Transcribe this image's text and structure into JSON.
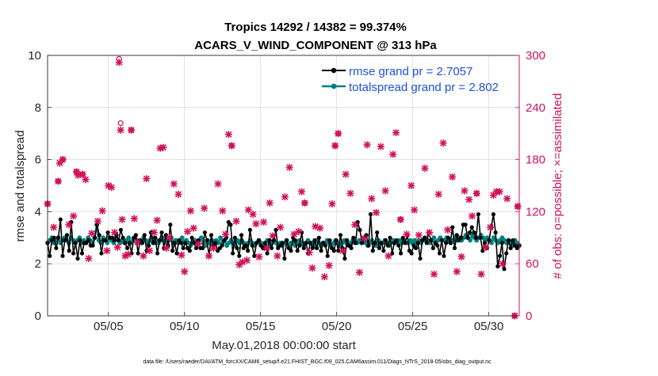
{
  "chart_data": {
    "type": "line",
    "title": "Tropics 14292 / 14382 = 99.374%",
    "subtitle": "ACARS_V_WIND_COMPONENT @ 313 hPa",
    "xlabel": "May.01,2018 00:00:00 start",
    "ylabel": "rmse and totalspread",
    "y2label": "# of obs: o=possible; ×=assimilated",
    "footnote": "data file: /Users/raeder/DAI/ATM_forcXX/CAM6_setup/f.e21.FHIST_BGC.f09_025.CAM6assim.011/Diags_NTrS_2018-05/obs_diag_output.nc",
    "xlim": [
      1,
      32
    ],
    "ylim": [
      0,
      10
    ],
    "y2lim": [
      0,
      300
    ],
    "x_ticks": [
      5,
      10,
      15,
      20,
      25,
      30
    ],
    "x_tick_labels": [
      "05/05",
      "05/10",
      "05/15",
      "05/20",
      "05/25",
      "05/30"
    ],
    "y_ticks": [
      0,
      2,
      4,
      6,
      8,
      10
    ],
    "y_tick_labels": [
      "0",
      "2",
      "4",
      "6",
      "8",
      "10"
    ],
    "y2_ticks": [
      0,
      60,
      120,
      180,
      240,
      300
    ],
    "y2_tick_labels": [
      "0",
      "60",
      "120",
      "180",
      "240",
      "300"
    ],
    "legend_position": "top-right",
    "colors": {
      "rmse": "#000000",
      "totalspread": "#008080",
      "obs": "#d0115b",
      "legend_text": "#1f4fe0",
      "axis": "#262626"
    },
    "series": [
      {
        "name": "rmse grand pr = 2.7057",
        "axis": "left",
        "values": [
          2.8,
          2.3,
          2.9,
          3.0,
          2.6,
          3.0,
          3.7,
          2.3,
          2.9,
          3.1,
          2.5,
          3.6,
          2.4,
          2.8,
          2.2,
          2.9,
          2.4,
          2.8,
          2.8,
          2.9,
          2.7,
          2.7,
          3.0,
          3.5,
          3.1,
          2.4,
          2.9,
          2.9,
          3.2,
          3.0,
          3.0,
          2.9,
          3.1,
          2.9,
          3.3,
          3.0,
          2.8,
          2.6,
          2.8,
          2.4,
          3.0,
          3.1,
          2.4,
          2.9,
          2.8,
          3.1,
          2.5,
          2.7,
          3.2,
          2.8,
          3.0,
          2.4,
          2.9,
          3.2,
          2.6,
          3.1,
          2.7,
          3.5,
          2.5,
          2.8,
          2.4,
          2.9,
          2.8,
          2.6,
          2.8,
          2.6,
          2.5,
          3.0,
          2.8,
          2.6,
          2.9,
          2.6,
          2.6,
          3.2,
          2.9,
          2.3,
          3.1,
          2.7,
          2.8,
          2.5,
          2.6,
          2.7,
          2.9,
          3.0,
          3.6,
          3.5,
          2.4,
          3.0,
          2.6,
          2.3,
          3.1,
          2.6,
          2.7,
          2.5,
          3.3,
          2.7,
          2.3,
          2.8,
          2.9,
          2.7,
          2.6,
          2.8,
          2.4,
          2.9,
          2.6,
          2.9,
          3.3,
          2.6,
          2.7,
          2.8,
          2.2,
          2.9,
          2.6,
          2.5,
          3.0,
          2.9,
          2.5,
          2.7,
          3.2,
          2.6,
          2.8,
          2.4,
          2.8,
          2.6,
          2.9,
          2.6,
          3.0,
          2.5,
          2.8,
          2.7,
          2.3,
          2.9,
          2.6,
          2.5,
          2.9,
          2.5,
          3.1,
          2.6,
          2.2,
          2.9,
          2.7,
          2.6,
          3.0,
          2.8,
          3.6,
          3.3,
          2.8,
          3.0,
          3.1,
          2.7,
          3.9,
          2.5,
          2.8,
          3.2,
          2.6,
          2.8,
          2.5,
          2.9,
          2.7,
          3.0,
          2.4,
          2.8,
          2.9,
          2.7,
          2.4,
          3.0,
          2.8,
          3.1,
          2.5,
          2.4,
          2.7,
          2.6,
          2.8,
          2.2,
          2.9,
          3.0,
          2.8,
          3.2,
          2.9,
          2.6,
          2.8,
          2.7,
          2.4,
          2.9,
          2.3,
          2.8,
          3.0,
          2.8,
          3.4,
          2.6,
          3.1,
          2.9,
          3.0,
          3.5,
          3.5,
          3.0,
          3.2,
          3.4,
          3.2,
          3.0,
          3.9,
          3.0,
          2.5,
          2.8,
          2.6,
          2.9,
          3.4,
          3.9,
          3.2,
          1.9,
          2.3,
          2.8,
          1.8,
          2.4,
          2.9,
          2.6,
          2.9,
          2.7,
          2.6,
          2.7
        ]
      },
      {
        "name": "totalspread grand pr = 2.802",
        "axis": "left",
        "values": [
          2.8,
          2.9,
          3.0,
          2.8,
          2.9,
          3.0,
          2.8,
          2.9,
          3.0,
          2.9,
          2.8,
          3.0,
          2.9,
          2.8,
          2.9,
          3.0,
          2.8,
          2.9,
          2.8,
          3.0,
          2.9,
          2.8,
          3.0,
          3.5,
          2.9,
          2.8,
          3.0,
          2.9,
          2.8,
          3.0,
          2.9,
          2.8,
          3.0,
          2.9,
          2.8,
          2.9,
          2.8,
          2.9,
          3.0,
          2.8,
          2.9,
          3.0,
          2.8,
          2.9,
          2.8,
          3.0,
          2.9,
          2.8,
          2.9,
          3.0,
          2.8,
          2.9,
          2.8,
          2.9,
          3.0,
          2.9,
          2.8,
          2.9,
          3.0,
          2.8,
          2.9,
          2.8,
          2.9,
          3.0,
          2.8,
          2.9,
          2.8,
          2.7,
          2.8,
          2.9,
          2.8,
          2.9,
          3.0,
          2.8,
          2.7,
          2.9,
          2.8,
          2.9,
          2.8,
          2.9,
          2.8,
          3.0,
          2.8,
          2.9,
          2.7,
          2.8,
          2.9,
          2.8,
          2.7,
          2.9,
          2.8,
          2.9,
          2.8,
          2.7,
          2.8,
          2.9,
          2.8,
          2.7,
          2.8,
          2.9,
          2.8,
          2.7,
          2.8,
          2.9,
          2.7,
          2.8,
          2.9,
          2.8,
          2.7,
          2.8,
          2.7,
          2.8,
          2.9,
          2.7,
          2.8,
          2.8,
          2.7,
          2.8,
          2.9,
          2.8,
          2.7,
          2.8,
          2.9,
          2.8,
          2.8,
          2.7,
          2.9,
          2.8,
          2.7,
          2.8,
          2.8,
          2.9,
          2.8,
          2.7,
          2.8,
          2.9,
          2.8,
          2.7,
          2.8,
          2.9,
          2.8,
          2.7,
          2.8,
          2.9,
          2.8,
          2.8,
          2.9,
          2.8,
          2.9,
          2.8,
          2.7,
          2.8,
          2.9,
          2.8,
          2.7,
          2.9,
          2.8,
          2.8,
          2.9,
          2.8,
          2.7,
          2.8,
          2.9,
          2.8,
          2.8,
          2.9,
          2.8,
          2.9,
          2.8,
          2.8,
          2.9,
          2.8,
          2.9,
          2.8,
          2.9,
          2.8,
          2.9,
          3.0,
          2.9,
          2.8,
          2.9,
          3.0,
          2.8,
          2.9,
          3.0,
          2.9,
          2.9,
          3.0,
          2.9,
          2.8,
          2.9,
          3.0,
          2.9,
          3.0,
          2.9,
          3.0,
          3.1,
          3.0,
          2.9,
          3.1,
          3.0,
          2.9,
          3.0,
          3.1,
          3.0,
          2.9,
          3.0,
          2.9,
          2.8,
          3.0,
          2.9,
          2.8,
          2.9,
          3.0,
          2.9,
          2.8,
          2.9,
          2.8,
          2.7,
          2.9,
          2.8,
          2.7
        ]
      },
      {
        "name": "assimilated obs",
        "axis": "right",
        "marker": "x",
        "points": [
          [
            1.0,
            129
          ],
          [
            1.4,
            102
          ],
          [
            1.7,
            155
          ],
          [
            1.8,
            176
          ],
          [
            2.0,
            180
          ],
          [
            2.4,
            105
          ],
          [
            2.7,
            115
          ],
          [
            2.9,
            166
          ],
          [
            3.0,
            162
          ],
          [
            3.3,
            163
          ],
          [
            3.5,
            157
          ],
          [
            3.7,
            66
          ],
          [
            3.9,
            95
          ],
          [
            4.3,
            109
          ],
          [
            4.6,
            121
          ],
          [
            4.9,
            75
          ],
          [
            5.0,
            150
          ],
          [
            5.2,
            148
          ],
          [
            5.4,
            96
          ],
          [
            5.6,
            79
          ],
          [
            5.7,
            292
          ],
          [
            5.8,
            214
          ],
          [
            5.9,
            111
          ],
          [
            6.1,
            69
          ],
          [
            6.3,
            71
          ],
          [
            6.5,
            214
          ],
          [
            6.7,
            112
          ],
          [
            6.9,
            85
          ],
          [
            7.3,
            69
          ],
          [
            7.5,
            158
          ],
          [
            7.7,
            75
          ],
          [
            8.0,
            96
          ],
          [
            8.2,
            110
          ],
          [
            8.4,
            193
          ],
          [
            8.6,
            194
          ],
          [
            8.8,
            78
          ],
          [
            9.0,
            90
          ],
          [
            9.3,
            152
          ],
          [
            9.6,
            140
          ],
          [
            9.8,
            70
          ],
          [
            10.0,
            51
          ],
          [
            10.2,
            97
          ],
          [
            10.4,
            121
          ],
          [
            10.6,
            101
          ],
          [
            10.9,
            83
          ],
          [
            11.3,
            124
          ],
          [
            11.6,
            69
          ],
          [
            11.9,
            78
          ],
          [
            12.2,
            152
          ],
          [
            12.5,
            121
          ],
          [
            12.7,
            94
          ],
          [
            12.9,
            209
          ],
          [
            13.1,
            196
          ],
          [
            13.4,
            109
          ],
          [
            13.6,
            59
          ],
          [
            13.8,
            62
          ],
          [
            14.1,
            64
          ],
          [
            14.2,
            122
          ],
          [
            14.5,
            117
          ],
          [
            14.7,
            106
          ],
          [
            14.9,
            68
          ],
          [
            15.2,
            108
          ],
          [
            15.4,
            78
          ],
          [
            15.6,
            130
          ],
          [
            15.8,
            92
          ],
          [
            16.1,
            69
          ],
          [
            16.3,
            102
          ],
          [
            16.6,
            137
          ],
          [
            16.9,
            171
          ],
          [
            17.2,
            94
          ],
          [
            17.5,
            97
          ],
          [
            17.7,
            143
          ],
          [
            17.9,
            130
          ],
          [
            18.2,
            73
          ],
          [
            18.4,
            55
          ],
          [
            18.6,
            103
          ],
          [
            18.9,
            101
          ],
          [
            19.2,
            45
          ],
          [
            19.5,
            58
          ],
          [
            19.7,
            129
          ],
          [
            19.9,
            196
          ],
          [
            20.1,
            210
          ],
          [
            20.4,
            75
          ],
          [
            20.6,
            163
          ],
          [
            20.9,
            141
          ],
          [
            21.2,
            105
          ],
          [
            21.5,
            50
          ],
          [
            21.8,
            89
          ],
          [
            22.0,
            197
          ],
          [
            22.3,
            135
          ],
          [
            22.6,
            119
          ],
          [
            22.9,
            195
          ],
          [
            23.2,
            144
          ],
          [
            23.4,
            69
          ],
          [
            23.7,
            186
          ],
          [
            23.9,
            211
          ],
          [
            24.2,
            111
          ],
          [
            24.6,
            94
          ],
          [
            24.9,
            150
          ],
          [
            25.1,
            122
          ],
          [
            25.4,
            93
          ],
          [
            25.8,
            170
          ],
          [
            26.1,
            96
          ],
          [
            26.4,
            48
          ],
          [
            26.7,
            140
          ],
          [
            27.0,
            199
          ],
          [
            27.3,
            99
          ],
          [
            27.6,
            160
          ],
          [
            27.9,
            51
          ],
          [
            28.2,
            68
          ],
          [
            28.4,
            144
          ],
          [
            28.7,
            134
          ],
          [
            28.9,
            115
          ],
          [
            29.2,
            141
          ],
          [
            29.5,
            48
          ],
          [
            29.8,
            79
          ],
          [
            30.1,
            102
          ],
          [
            30.3,
            139
          ],
          [
            30.5,
            143
          ],
          [
            30.7,
            143
          ],
          [
            30.9,
            60
          ],
          [
            31.2,
            135
          ],
          [
            31.7,
            0
          ],
          [
            31.9,
            126
          ]
        ]
      },
      {
        "name": "possible obs",
        "axis": "right",
        "marker": "o",
        "points": [
          [
            1.0,
            129
          ],
          [
            1.7,
            155
          ],
          [
            2.0,
            180
          ],
          [
            2.9,
            166
          ],
          [
            3.3,
            163
          ],
          [
            5.7,
            296
          ],
          [
            5.8,
            222
          ],
          [
            6.5,
            214
          ],
          [
            13.1,
            196
          ],
          [
            17.9,
            130
          ],
          [
            19.9,
            196
          ],
          [
            20.1,
            210
          ],
          [
            24.2,
            111
          ],
          [
            29.2,
            141
          ],
          [
            31.7,
            0
          ],
          [
            31.9,
            126
          ]
        ]
      }
    ]
  }
}
